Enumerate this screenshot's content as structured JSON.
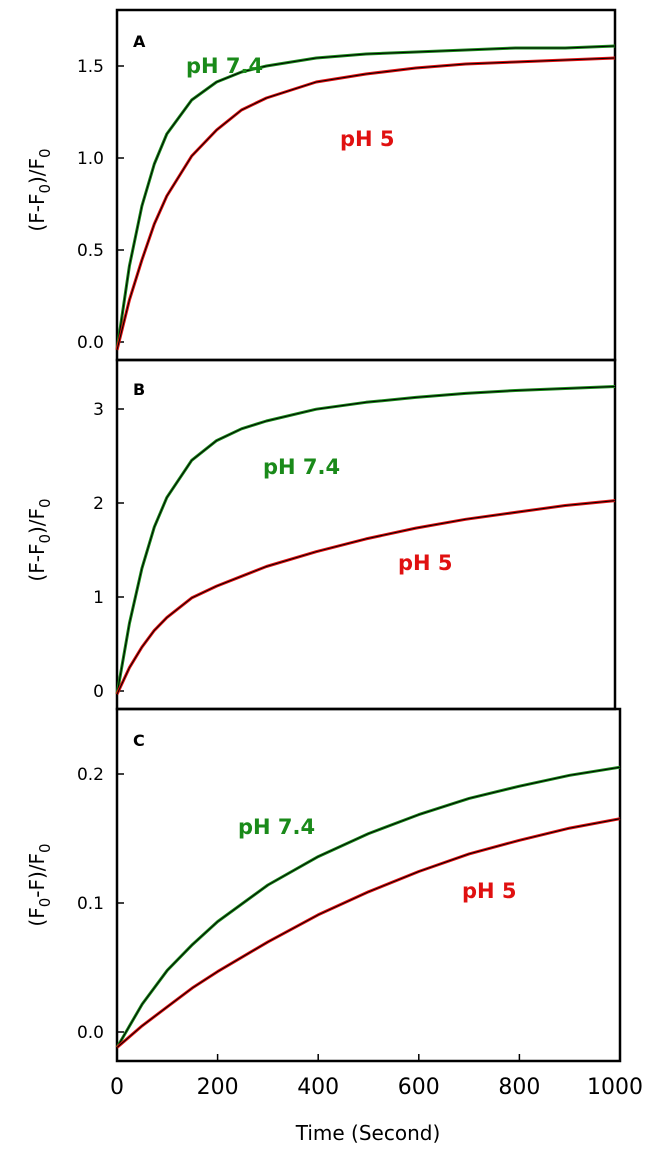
{
  "chart_data": [
    {
      "type": "line",
      "panel_label": "A",
      "ylabel": "(F-F0)/F0",
      "ylim": [
        -0.05,
        1.7
      ],
      "yticks": [
        "0.0",
        "0.5",
        "1.0",
        "1.5"
      ],
      "ytick_values": [
        0.0,
        0.5,
        1.0,
        1.5
      ],
      "xlim": [
        0,
        1000
      ],
      "series": [
        {
          "name": "pH 7.4",
          "color": "#1a8a1a",
          "x": [
            0,
            25,
            50,
            75,
            100,
            150,
            200,
            250,
            300,
            400,
            500,
            600,
            700,
            800,
            900,
            1000
          ],
          "y": [
            0.0,
            0.42,
            0.72,
            0.93,
            1.08,
            1.25,
            1.34,
            1.39,
            1.42,
            1.46,
            1.48,
            1.49,
            1.5,
            1.51,
            1.51,
            1.52
          ]
        },
        {
          "name": "pH 5",
          "color": "#e01010",
          "x": [
            0,
            25,
            50,
            75,
            100,
            150,
            200,
            250,
            300,
            400,
            500,
            600,
            700,
            800,
            900,
            1000
          ],
          "y": [
            0.0,
            0.25,
            0.45,
            0.63,
            0.77,
            0.97,
            1.1,
            1.2,
            1.26,
            1.34,
            1.38,
            1.41,
            1.43,
            1.44,
            1.45,
            1.46
          ]
        }
      ]
    },
    {
      "type": "line",
      "panel_label": "B",
      "ylabel": "(F-F0)/F0",
      "ylim": [
        -0.15,
        3.4
      ],
      "yticks": [
        "0",
        "1",
        "2",
        "3"
      ],
      "ytick_values": [
        0,
        1,
        2,
        3
      ],
      "xlim": [
        0,
        1000
      ],
      "series": [
        {
          "name": "pH 7.4",
          "color": "#1a8a1a",
          "x": [
            0,
            25,
            50,
            75,
            100,
            150,
            200,
            250,
            300,
            400,
            500,
            600,
            700,
            800,
            900,
            1000
          ],
          "y": [
            0.0,
            0.72,
            1.28,
            1.7,
            2.0,
            2.38,
            2.58,
            2.7,
            2.78,
            2.9,
            2.97,
            3.02,
            3.06,
            3.09,
            3.11,
            3.13
          ]
        },
        {
          "name": "pH 5",
          "color": "#e01010",
          "x": [
            0,
            25,
            50,
            75,
            100,
            150,
            200,
            250,
            300,
            400,
            500,
            600,
            700,
            800,
            900,
            1000
          ],
          "y": [
            0.0,
            0.27,
            0.48,
            0.65,
            0.78,
            0.98,
            1.1,
            1.2,
            1.3,
            1.45,
            1.58,
            1.69,
            1.78,
            1.85,
            1.92,
            1.97
          ]
        }
      ]
    },
    {
      "type": "line",
      "panel_label": "C",
      "ylabel": "(F0-F)/F0",
      "ylim": [
        -0.01,
        0.25
      ],
      "yticks": [
        "0.0",
        "0.1",
        "0.2"
      ],
      "ytick_values": [
        0.0,
        0.1,
        0.2
      ],
      "xlim": [
        0,
        1000
      ],
      "xticks": [
        "0",
        "200",
        "400",
        "600",
        "800",
        "1000"
      ],
      "xtick_values": [
        0,
        200,
        400,
        600,
        800,
        1000
      ],
      "xlabel": "Time (Second)",
      "series": [
        {
          "name": "pH 7.4",
          "color": "#1a8a1a",
          "x": [
            0,
            50,
            100,
            150,
            200,
            300,
            400,
            500,
            600,
            700,
            800,
            900,
            1000
          ],
          "y": [
            0.0,
            0.032,
            0.057,
            0.076,
            0.093,
            0.12,
            0.141,
            0.158,
            0.172,
            0.184,
            0.193,
            0.201,
            0.207
          ]
        },
        {
          "name": "pH 5",
          "color": "#e01010",
          "x": [
            0,
            50,
            100,
            150,
            200,
            300,
            400,
            500,
            600,
            700,
            800,
            900,
            1000
          ],
          "y": [
            0.0,
            0.016,
            0.03,
            0.044,
            0.056,
            0.078,
            0.098,
            0.115,
            0.13,
            0.143,
            0.153,
            0.162,
            0.169
          ]
        }
      ]
    }
  ]
}
